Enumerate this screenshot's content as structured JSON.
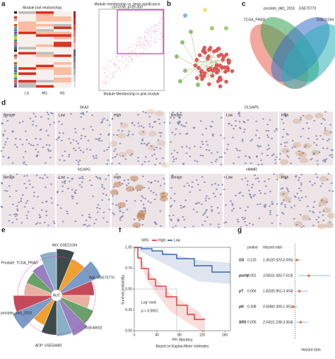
{
  "panels": [
    "a",
    "b",
    "c",
    "d",
    "e",
    "f",
    "g"
  ],
  "heatmap": {
    "title": "Module-trait relationships",
    "columns": [
      "LS",
      "MS",
      "HS"
    ]
  },
  "scatter": {
    "title": "Module membership vs. gene significance",
    "subtitle": "cor=0.66, p=1e-300",
    "xlabel": "Module Membership in pink module"
  },
  "venn": {
    "sets": [
      "TCGA_PRAD",
      "prostate_dkfz_2018",
      "GSE70770",
      "GSE21034"
    ]
  },
  "ihc": [
    {
      "gene": "SKA3",
      "images": [
        "Benign",
        "Low",
        "High"
      ]
    },
    {
      "gene": "DLGAP5",
      "images": [
        "Benign",
        "Low",
        "High"
      ]
    },
    {
      "gene": "NCAPG",
      "images": [
        "Benign",
        "Low",
        "High"
      ]
    },
    {
      "gene": "HMMR",
      "images": [
        "Benign",
        "Low",
        "High"
      ]
    }
  ],
  "radial": {
    "center": "AUC",
    "labels": [
      "Mei: GSE21034",
      "Wal: GSE70770",
      "GSE46602",
      "ADP: GSE54460",
      "BCR: prostate_dkfz_2018",
      "Prostate: TCGA_PRAD"
    ]
  },
  "km": {
    "legend_title": "SRS",
    "series": [
      {
        "name": "High",
        "color": "#e41a1c"
      },
      {
        "name": "Low",
        "color": "#1f4e9c"
      }
    ],
    "ylabel": "Survival probability",
    "xlabel": "PFI (Months)",
    "test": "Log−rank",
    "pvalue": "p < 0.0001",
    "note": "Based on Kaplan-Meier estimates",
    "xlim": [
      0,
      170
    ],
    "xticks": [
      0,
      40,
      80,
      120,
      160
    ],
    "ylim": [
      0,
      1
    ],
    "yticks": [
      {
        "value": 0,
        "label": "0.00"
      },
      {
        "value": 0.25,
        "label": "0.25"
      },
      {
        "value": 0.5,
        "label": "0.50"
      },
      {
        "value": 0.75,
        "label": "0.75"
      },
      {
        "value": 1,
        "label": "1.00"
      }
    ]
  },
  "forest": {
    "headers": [
      "pvalue",
      "Hazard ratio"
    ],
    "xlabel": "Hazard ratio",
    "xlim": [
      0,
      8
    ],
    "reference": 1,
    "rows": [
      {
        "label": "GS",
        "pvalue": "0.120",
        "hr_text": "1.361(0.923-2.006)",
        "hr": 1.361,
        "lo": 0.923,
        "hi": 2.006
      },
      {
        "label": "purity",
        "pvalue": "0.001",
        "hr_text": "3.581(1.683-7.619)",
        "hr": 3.581,
        "lo": 1.683,
        "hi": 7.619
      },
      {
        "label": "pT",
        "pvalue": "0.066",
        "hr_text": "1.822(0.961-3.454)",
        "hr": 1.822,
        "lo": 0.961,
        "hi": 3.454
      },
      {
        "label": "pN",
        "pvalue": "0.308",
        "hr_text": "0.668(0.309-1.451)",
        "hr": 0.668,
        "lo": 0.309,
        "hi": 1.451
      },
      {
        "label": "SRS",
        "pvalue": "0.005",
        "hr_text": "2.041(1.238-3.364)",
        "hr": 2.041,
        "lo": 1.238,
        "hi": 3.364
      }
    ]
  }
}
